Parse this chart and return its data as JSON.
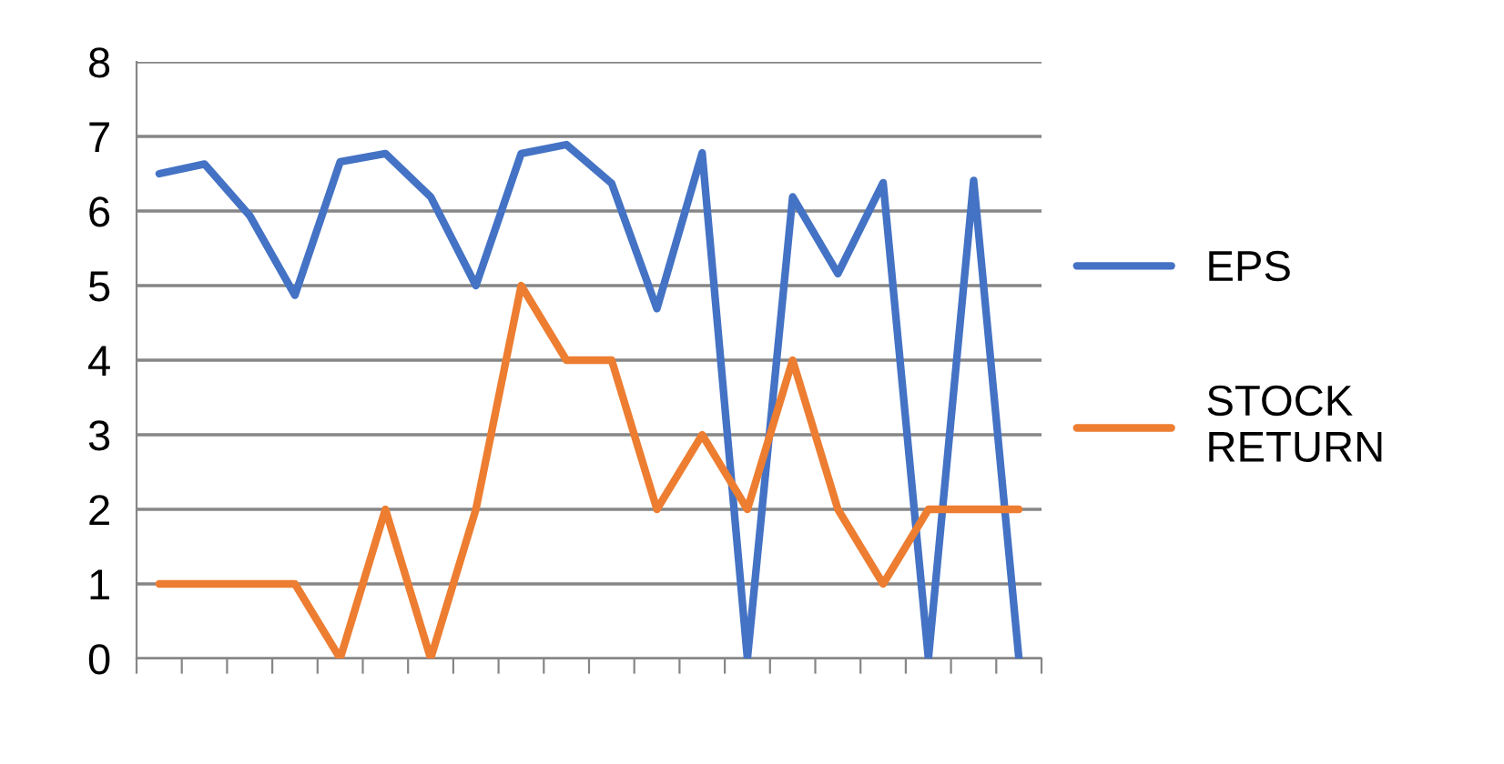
{
  "chart_data": {
    "type": "line",
    "categories": [
      null,
      null,
      null,
      null,
      null,
      null,
      null,
      null,
      null,
      null,
      null,
      null,
      null,
      null,
      null,
      null,
      null,
      null,
      null,
      null
    ],
    "series": [
      {
        "name": "EPS",
        "color": "#4472c4",
        "values": [
          6.5,
          6.63,
          5.94,
          4.87,
          6.66,
          6.77,
          6.19,
          5.0,
          6.77,
          6.89,
          6.37,
          4.69,
          6.78,
          0,
          6.19,
          5.16,
          6.38,
          0,
          6.41,
          0
        ]
      },
      {
        "name": "STOCK RETURN",
        "color": "#ed7d31",
        "values": [
          1,
          1,
          1,
          1,
          0,
          2,
          0,
          2,
          5,
          4,
          4,
          2,
          3,
          2,
          4,
          2,
          1,
          2,
          2,
          2
        ]
      }
    ],
    "ylim": [
      0,
      8
    ],
    "yticks": [
      0,
      1,
      2,
      3,
      4,
      5,
      6,
      7,
      8
    ],
    "grid": "y",
    "legend": "right",
    "marker": "none",
    "line_style": "solid",
    "tick_labels": "y"
  }
}
